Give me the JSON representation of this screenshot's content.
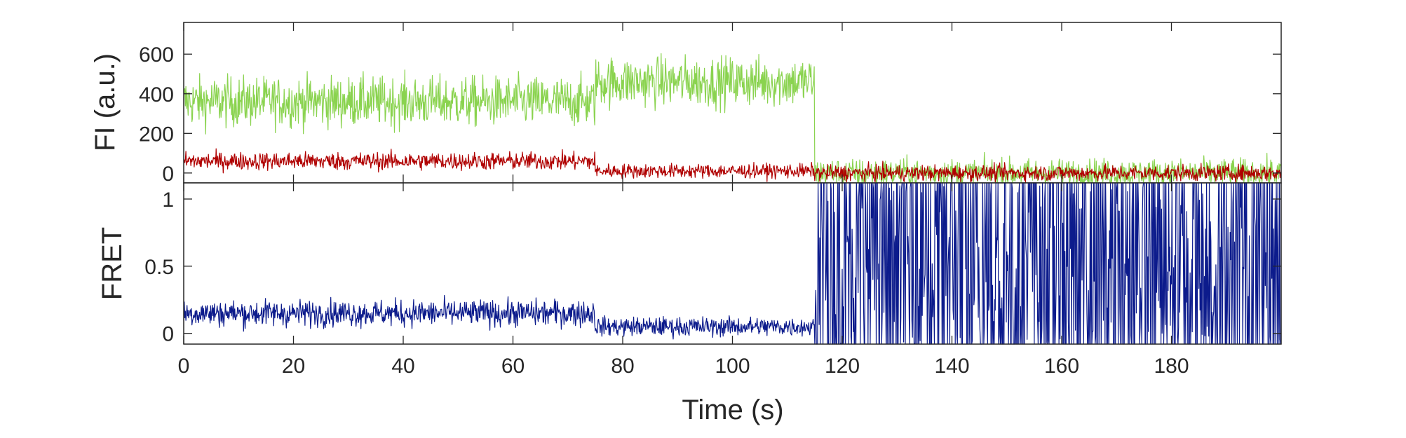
{
  "chart_data": [
    {
      "type": "line",
      "panel": "top",
      "ylabel": "FI (a.u.)",
      "xlabel": "",
      "xlim": [
        0,
        200
      ],
      "ylim": [
        -50,
        760
      ],
      "yticks": [
        0,
        200,
        400,
        600
      ],
      "ytick_labels": [
        "0",
        "200",
        "400",
        "600"
      ],
      "xticks": [
        0,
        20,
        40,
        60,
        80,
        100,
        120,
        140,
        160,
        180
      ],
      "show_xtick_labels": false,
      "series": [
        {
          "color": "#8ad34f",
          "segments": [
            {
              "x_start": 0,
              "x_end": 75,
              "level": 360,
              "noise": 140
            },
            {
              "x_start": 75,
              "x_end": 115,
              "level": 460,
              "noise": 140
            },
            {
              "x_start": 115,
              "x_end": 200,
              "level": 0,
              "noise": 80
            }
          ]
        },
        {
          "color": "#b00000",
          "segments": [
            {
              "x_start": 0,
              "x_end": 75,
              "level": 60,
              "noise": 50
            },
            {
              "x_start": 75,
              "x_end": 115,
              "level": 10,
              "noise": 40
            },
            {
              "x_start": 115,
              "x_end": 200,
              "level": 0,
              "noise": 45
            }
          ]
        }
      ]
    },
    {
      "type": "line",
      "panel": "bottom",
      "ylabel": "FRET",
      "xlabel": "Time (s)",
      "xlim": [
        0,
        200
      ],
      "ylim": [
        -0.08,
        1.12
      ],
      "yticks": [
        0,
        0.5,
        1
      ],
      "ytick_labels": [
        "0",
        "0.5",
        "1"
      ],
      "xticks": [
        0,
        20,
        40,
        60,
        80,
        100,
        120,
        140,
        160,
        180
      ],
      "xtick_labels": [
        "0",
        "20",
        "40",
        "60",
        "80",
        "100",
        "120",
        "140",
        "160",
        "180"
      ],
      "series": [
        {
          "color": "#0c1b8c",
          "segments": [
            {
              "x_start": 0,
              "x_end": 75,
              "level": 0.15,
              "noise": 0.11
            },
            {
              "x_start": 75,
              "x_end": 115,
              "level": 0.05,
              "noise": 0.08
            },
            {
              "x_start": 115,
              "x_end": 200,
              "level": 0.5,
              "noise": 1.0
            }
          ]
        }
      ]
    }
  ]
}
